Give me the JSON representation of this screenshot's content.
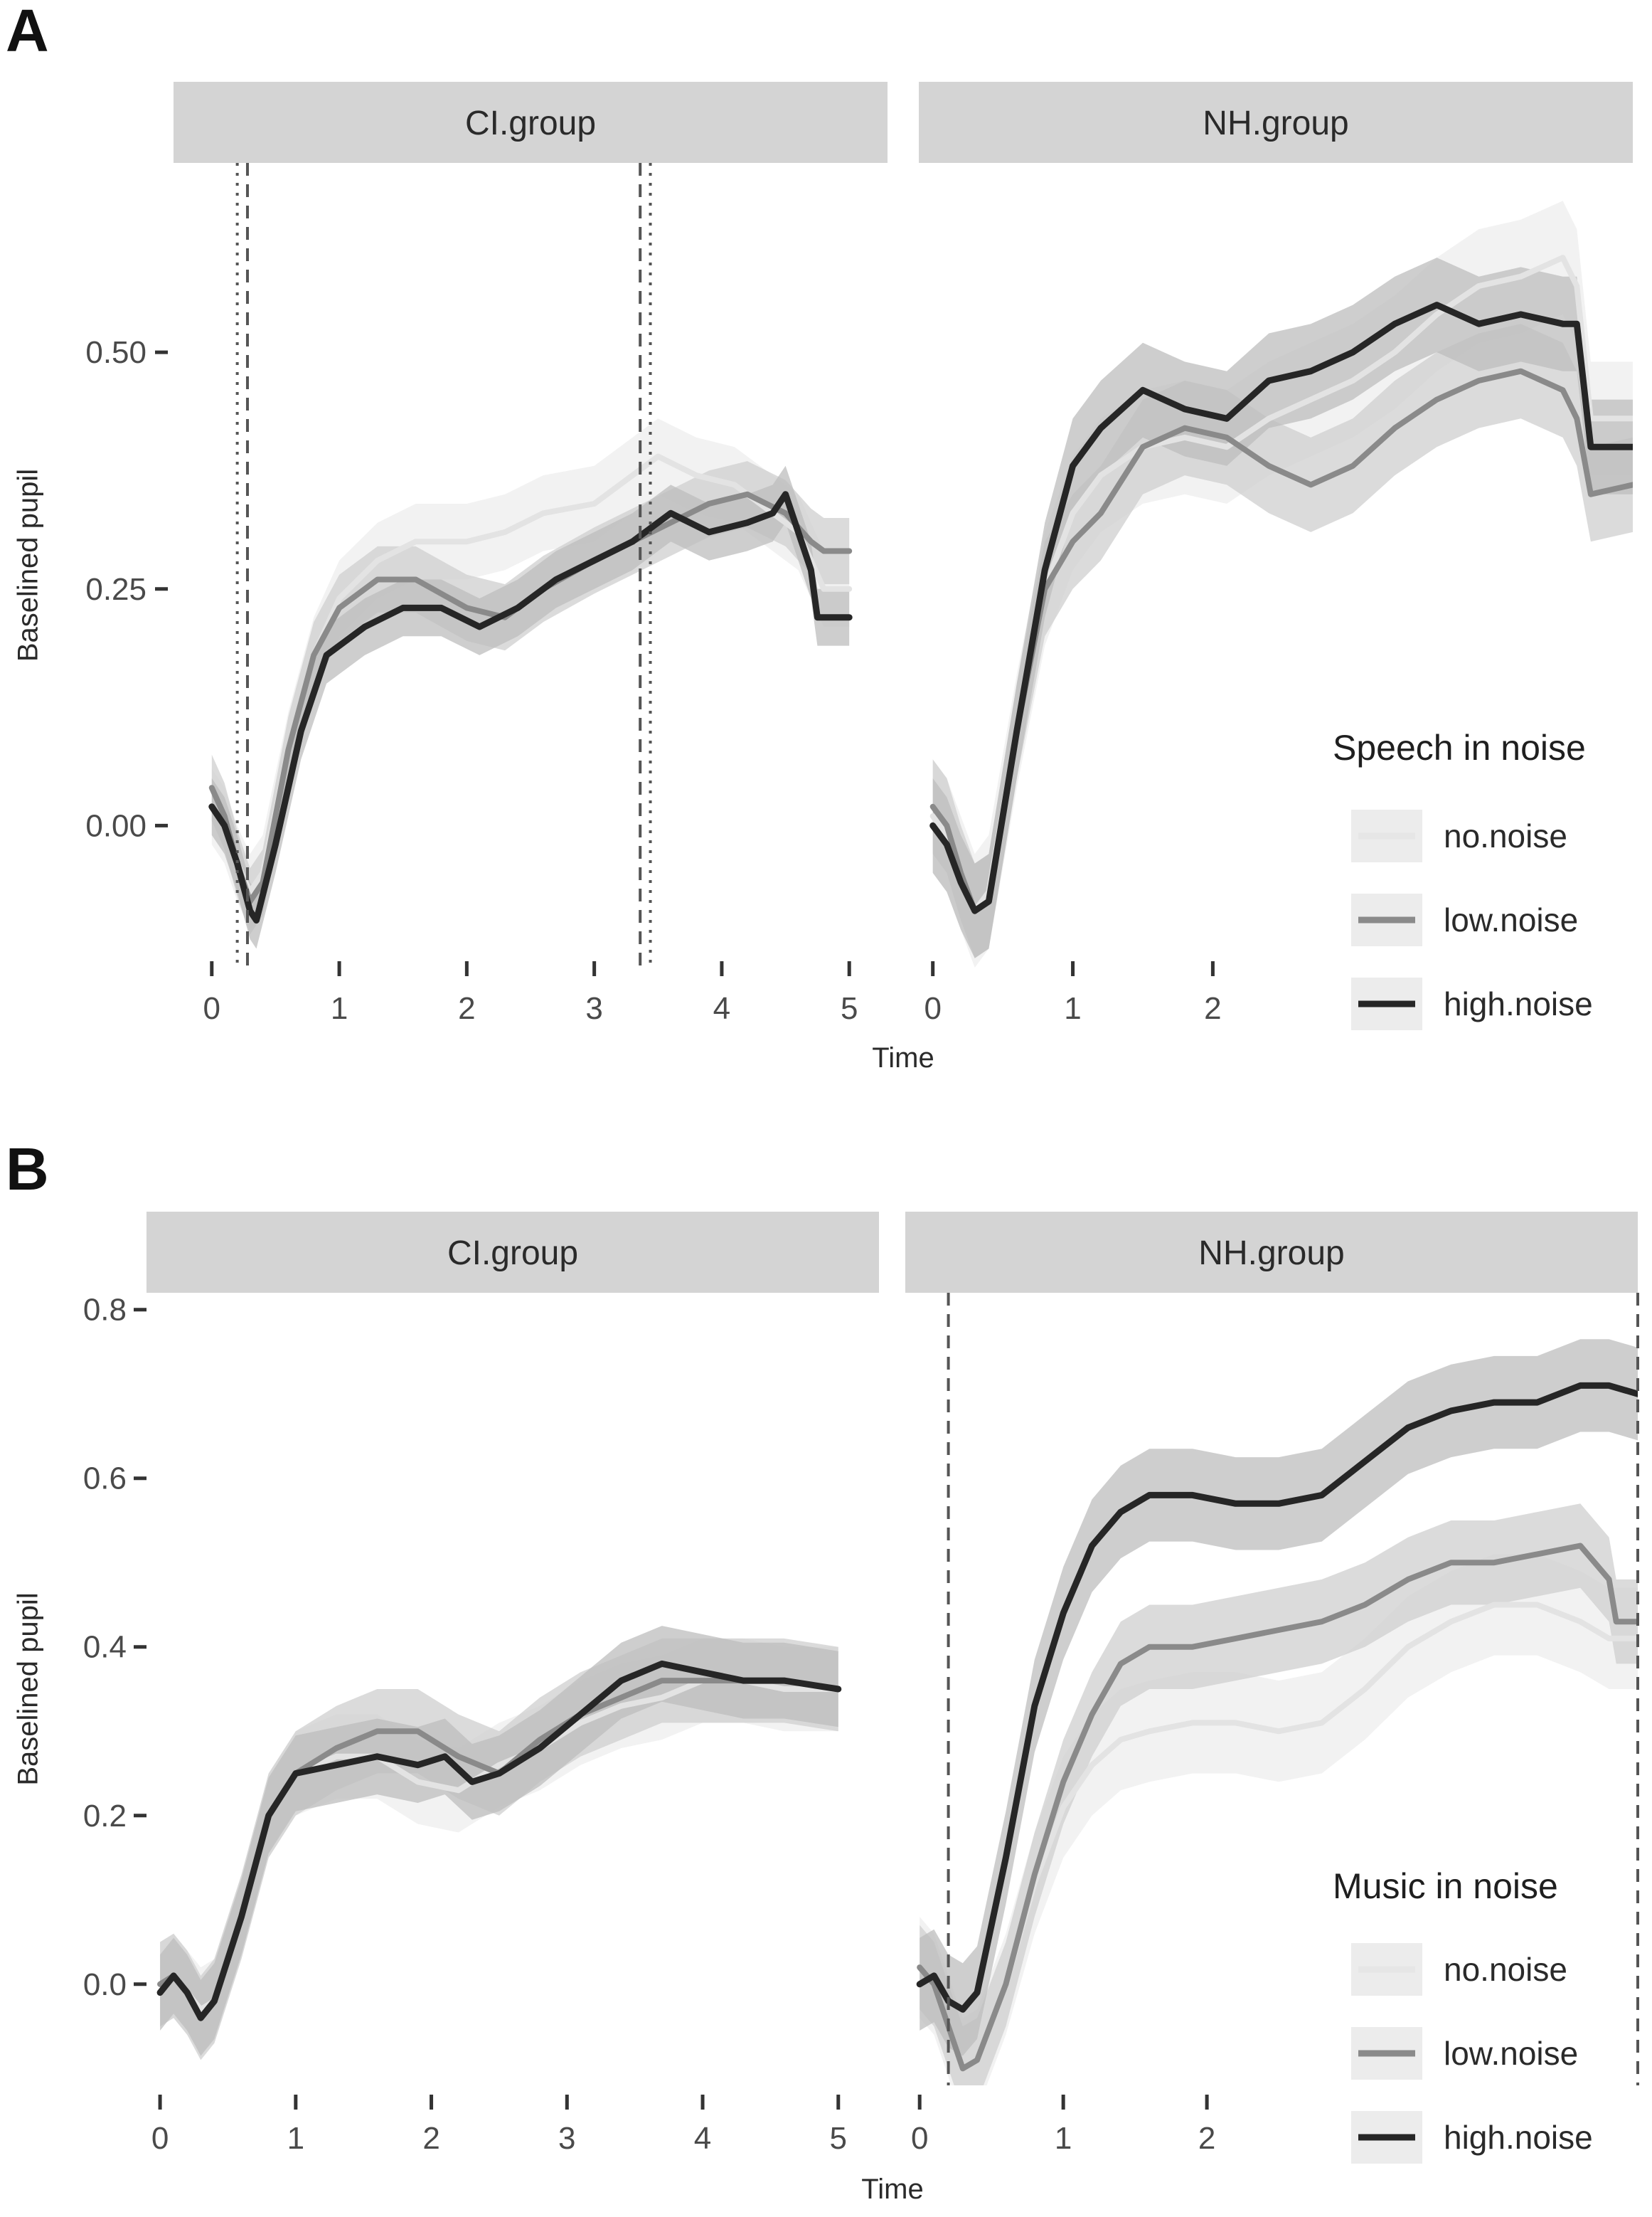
{
  "chart_data": [
    {
      "panel_label": "A",
      "type": "line",
      "ylabel": "Baselined pupil",
      "xlabel": "Time",
      "ylim": [
        -0.15,
        0.7
      ],
      "yticks": [
        0.0,
        0.25,
        0.5
      ],
      "ytick_labels": [
        "0.00",
        "0.25",
        "0.50"
      ],
      "xticks": [
        0,
        1,
        2,
        3,
        4,
        5
      ],
      "legend": {
        "title": "Speech in noise",
        "entries": [
          {
            "name": "no.noise",
            "color": "#e6e6e6"
          },
          {
            "name": "low.noise",
            "color": "#8a8a8a"
          },
          {
            "name": "high.noise",
            "color": "#262626"
          }
        ]
      },
      "facets": [
        {
          "title": "CI.group",
          "xlim": [
            -0.3,
            5.3
          ],
          "xtick_labels": [
            "0",
            "1",
            "2",
            "3",
            "4",
            "5"
          ],
          "vlines": [
            {
              "x": 0.2,
              "style": "dotted"
            },
            {
              "x": 0.28,
              "style": "dashed"
            },
            {
              "x": 3.36,
              "style": "dashed"
            },
            {
              "x": 3.44,
              "style": "dotted"
            }
          ],
          "series": [
            {
              "name": "no.noise",
              "band": 0.04,
              "x": [
                0,
                0.1,
                0.2,
                0.3,
                0.4,
                0.6,
                0.8,
                1.0,
                1.3,
                1.6,
                2.0,
                2.3,
                2.6,
                3.0,
                3.3,
                3.5,
                3.8,
                4.1,
                4.4,
                4.6,
                4.8,
                5.0
              ],
              "y": [
                0.02,
                0.0,
                -0.04,
                -0.07,
                -0.05,
                0.08,
                0.18,
                0.24,
                0.28,
                0.3,
                0.3,
                0.31,
                0.33,
                0.34,
                0.37,
                0.39,
                0.37,
                0.36,
                0.33,
                0.31,
                0.25,
                0.25
              ]
            },
            {
              "name": "low.noise",
              "band": 0.035,
              "x": [
                0,
                0.1,
                0.2,
                0.3,
                0.4,
                0.6,
                0.8,
                1.0,
                1.3,
                1.6,
                2.0,
                2.3,
                2.6,
                3.0,
                3.3,
                3.6,
                3.9,
                4.2,
                4.5,
                4.7,
                4.8,
                5.0
              ],
              "y": [
                0.04,
                0.01,
                -0.04,
                -0.08,
                -0.06,
                0.08,
                0.18,
                0.23,
                0.26,
                0.26,
                0.23,
                0.22,
                0.25,
                0.28,
                0.3,
                0.32,
                0.34,
                0.35,
                0.33,
                0.3,
                0.29,
                0.29
              ]
            },
            {
              "name": "high.noise",
              "band": 0.03,
              "x": [
                0,
                0.1,
                0.2,
                0.3,
                0.35,
                0.5,
                0.7,
                0.9,
                1.2,
                1.5,
                1.8,
                2.1,
                2.4,
                2.7,
                3.0,
                3.3,
                3.6,
                3.9,
                4.2,
                4.4,
                4.5,
                4.6,
                4.7,
                4.75,
                5.0
              ],
              "y": [
                0.02,
                0.0,
                -0.04,
                -0.09,
                -0.1,
                -0.02,
                0.1,
                0.18,
                0.21,
                0.23,
                0.23,
                0.21,
                0.23,
                0.26,
                0.28,
                0.3,
                0.33,
                0.31,
                0.32,
                0.33,
                0.35,
                0.31,
                0.27,
                0.22,
                0.22
              ]
            }
          ]
        },
        {
          "title": "NH.group",
          "xlim": [
            -0.1,
            5.0
          ],
          "xtick_labels": [
            "0",
            "1",
            "2"
          ],
          "vlines": [],
          "series": [
            {
              "name": "no.noise",
              "band": 0.06,
              "x": [
                0,
                0.1,
                0.2,
                0.3,
                0.4,
                0.6,
                0.8,
                1.0,
                1.2,
                1.5,
                1.8,
                2.1,
                2.4,
                2.7,
                3.0,
                3.3,
                3.6,
                3.9,
                4.2,
                4.5,
                4.6,
                4.7,
                5.0
              ],
              "y": [
                0.01,
                -0.01,
                -0.05,
                -0.09,
                -0.07,
                0.1,
                0.25,
                0.33,
                0.37,
                0.4,
                0.41,
                0.4,
                0.43,
                0.45,
                0.47,
                0.5,
                0.54,
                0.57,
                0.58,
                0.6,
                0.57,
                0.43,
                0.43
              ]
            },
            {
              "name": "low.noise",
              "band": 0.05,
              "x": [
                0,
                0.1,
                0.2,
                0.3,
                0.4,
                0.6,
                0.8,
                1.0,
                1.2,
                1.5,
                1.8,
                2.1,
                2.4,
                2.7,
                3.0,
                3.3,
                3.6,
                3.9,
                4.2,
                4.5,
                4.6,
                4.7,
                5.0
              ],
              "y": [
                0.02,
                0.0,
                -0.05,
                -0.09,
                -0.08,
                0.1,
                0.25,
                0.3,
                0.33,
                0.4,
                0.42,
                0.41,
                0.38,
                0.36,
                0.38,
                0.42,
                0.45,
                0.47,
                0.48,
                0.46,
                0.43,
                0.35,
                0.36
              ]
            },
            {
              "name": "high.noise",
              "band": 0.05,
              "x": [
                0,
                0.1,
                0.2,
                0.3,
                0.4,
                0.6,
                0.8,
                1.0,
                1.2,
                1.5,
                1.8,
                2.1,
                2.4,
                2.7,
                3.0,
                3.3,
                3.6,
                3.9,
                4.2,
                4.5,
                4.6,
                4.7,
                5.0
              ],
              "y": [
                0.0,
                -0.02,
                -0.06,
                -0.09,
                -0.08,
                0.1,
                0.27,
                0.38,
                0.42,
                0.46,
                0.44,
                0.43,
                0.47,
                0.48,
                0.5,
                0.53,
                0.55,
                0.53,
                0.54,
                0.53,
                0.53,
                0.4,
                0.4
              ]
            }
          ]
        }
      ]
    },
    {
      "panel_label": "B",
      "type": "line",
      "ylabel": "Baselined pupil",
      "xlabel": "Time",
      "ylim": [
        -0.12,
        0.82
      ],
      "yticks": [
        0.0,
        0.2,
        0.4,
        0.6,
        0.8
      ],
      "ytick_labels": [
        "0.0",
        "0.2",
        "0.4",
        "0.6",
        "0.8"
      ],
      "xticks": [
        0,
        1,
        2,
        3,
        4,
        5
      ],
      "legend": {
        "title": "Music in noise",
        "entries": [
          {
            "name": "no.noise",
            "color": "#e6e6e6"
          },
          {
            "name": "low.noise",
            "color": "#8a8a8a"
          },
          {
            "name": "high.noise",
            "color": "#262626"
          }
        ]
      },
      "facets": [
        {
          "title": "CI.group",
          "xlim": [
            -0.1,
            5.3
          ],
          "xtick_labels": [
            "0",
            "1",
            "2",
            "3",
            "4",
            "5"
          ],
          "vlines": [],
          "series": [
            {
              "name": "no.noise",
              "band": 0.05,
              "x": [
                0,
                0.1,
                0.2,
                0.3,
                0.4,
                0.6,
                0.8,
                1.0,
                1.3,
                1.6,
                1.9,
                2.2,
                2.5,
                2.8,
                3.1,
                3.4,
                3.7,
                4.0,
                4.3,
                4.6,
                5.0
              ],
              "y": [
                0.0,
                0.01,
                -0.01,
                -0.03,
                -0.02,
                0.08,
                0.2,
                0.25,
                0.27,
                0.27,
                0.24,
                0.23,
                0.26,
                0.28,
                0.31,
                0.33,
                0.34,
                0.36,
                0.36,
                0.35,
                0.35
              ]
            },
            {
              "name": "low.noise",
              "band": 0.05,
              "x": [
                0,
                0.1,
                0.2,
                0.3,
                0.4,
                0.6,
                0.8,
                1.0,
                1.3,
                1.6,
                1.9,
                2.2,
                2.5,
                2.8,
                3.1,
                3.4,
                3.7,
                4.0,
                4.3,
                4.6,
                5.0
              ],
              "y": [
                0.0,
                0.01,
                -0.01,
                -0.04,
                -0.02,
                0.08,
                0.2,
                0.25,
                0.28,
                0.3,
                0.3,
                0.27,
                0.25,
                0.29,
                0.32,
                0.34,
                0.36,
                0.36,
                0.36,
                0.36,
                0.35
              ]
            },
            {
              "name": "high.noise",
              "band": 0.045,
              "x": [
                0,
                0.1,
                0.2,
                0.3,
                0.4,
                0.6,
                0.8,
                1.0,
                1.3,
                1.6,
                1.9,
                2.1,
                2.3,
                2.5,
                2.8,
                3.1,
                3.4,
                3.7,
                4.0,
                4.3,
                4.6,
                5.0
              ],
              "y": [
                -0.01,
                0.01,
                -0.01,
                -0.04,
                -0.02,
                0.08,
                0.2,
                0.25,
                0.26,
                0.27,
                0.26,
                0.27,
                0.24,
                0.25,
                0.28,
                0.32,
                0.36,
                0.38,
                0.37,
                0.36,
                0.36,
                0.35
              ]
            }
          ]
        },
        {
          "title": "NH.group",
          "xlim": [
            -0.1,
            5.0
          ],
          "xtick_labels": [
            "0",
            "1",
            "2"
          ],
          "vlines": [
            {
              "x": 0.2,
              "style": "dashed"
            },
            {
              "x": 5.0,
              "style": "dashed"
            }
          ],
          "series": [
            {
              "name": "no.noise",
              "band": 0.06,
              "x": [
                0,
                0.1,
                0.2,
                0.3,
                0.4,
                0.6,
                0.8,
                1.0,
                1.2,
                1.4,
                1.6,
                1.9,
                2.2,
                2.5,
                2.8,
                3.1,
                3.4,
                3.7,
                4.0,
                4.3,
                4.6,
                4.8,
                5.0
              ],
              "y": [
                0.02,
                0.0,
                -0.05,
                -0.1,
                -0.09,
                0.0,
                0.12,
                0.21,
                0.26,
                0.29,
                0.3,
                0.31,
                0.31,
                0.3,
                0.31,
                0.35,
                0.4,
                0.43,
                0.45,
                0.45,
                0.43,
                0.41,
                0.41
              ]
            },
            {
              "name": "low.noise",
              "band": 0.05,
              "x": [
                0,
                0.1,
                0.2,
                0.3,
                0.4,
                0.6,
                0.8,
                1.0,
                1.2,
                1.4,
                1.6,
                1.9,
                2.2,
                2.5,
                2.8,
                3.1,
                3.4,
                3.7,
                4.0,
                4.3,
                4.6,
                4.8,
                4.85,
                5.0
              ],
              "y": [
                0.02,
                0.0,
                -0.05,
                -0.1,
                -0.09,
                0.0,
                0.13,
                0.24,
                0.32,
                0.38,
                0.4,
                0.4,
                0.41,
                0.42,
                0.43,
                0.45,
                0.48,
                0.5,
                0.5,
                0.51,
                0.52,
                0.48,
                0.43,
                0.43
              ]
            },
            {
              "name": "high.noise",
              "band": 0.055,
              "x": [
                0,
                0.1,
                0.2,
                0.3,
                0.4,
                0.6,
                0.8,
                1.0,
                1.2,
                1.4,
                1.6,
                1.9,
                2.2,
                2.5,
                2.8,
                3.1,
                3.4,
                3.7,
                4.0,
                4.3,
                4.6,
                4.8,
                5.0
              ],
              "y": [
                0.0,
                0.01,
                -0.02,
                -0.03,
                -0.01,
                0.15,
                0.33,
                0.44,
                0.52,
                0.56,
                0.58,
                0.58,
                0.57,
                0.57,
                0.58,
                0.62,
                0.66,
                0.68,
                0.69,
                0.69,
                0.71,
                0.71,
                0.7
              ]
            }
          ]
        }
      ]
    }
  ]
}
